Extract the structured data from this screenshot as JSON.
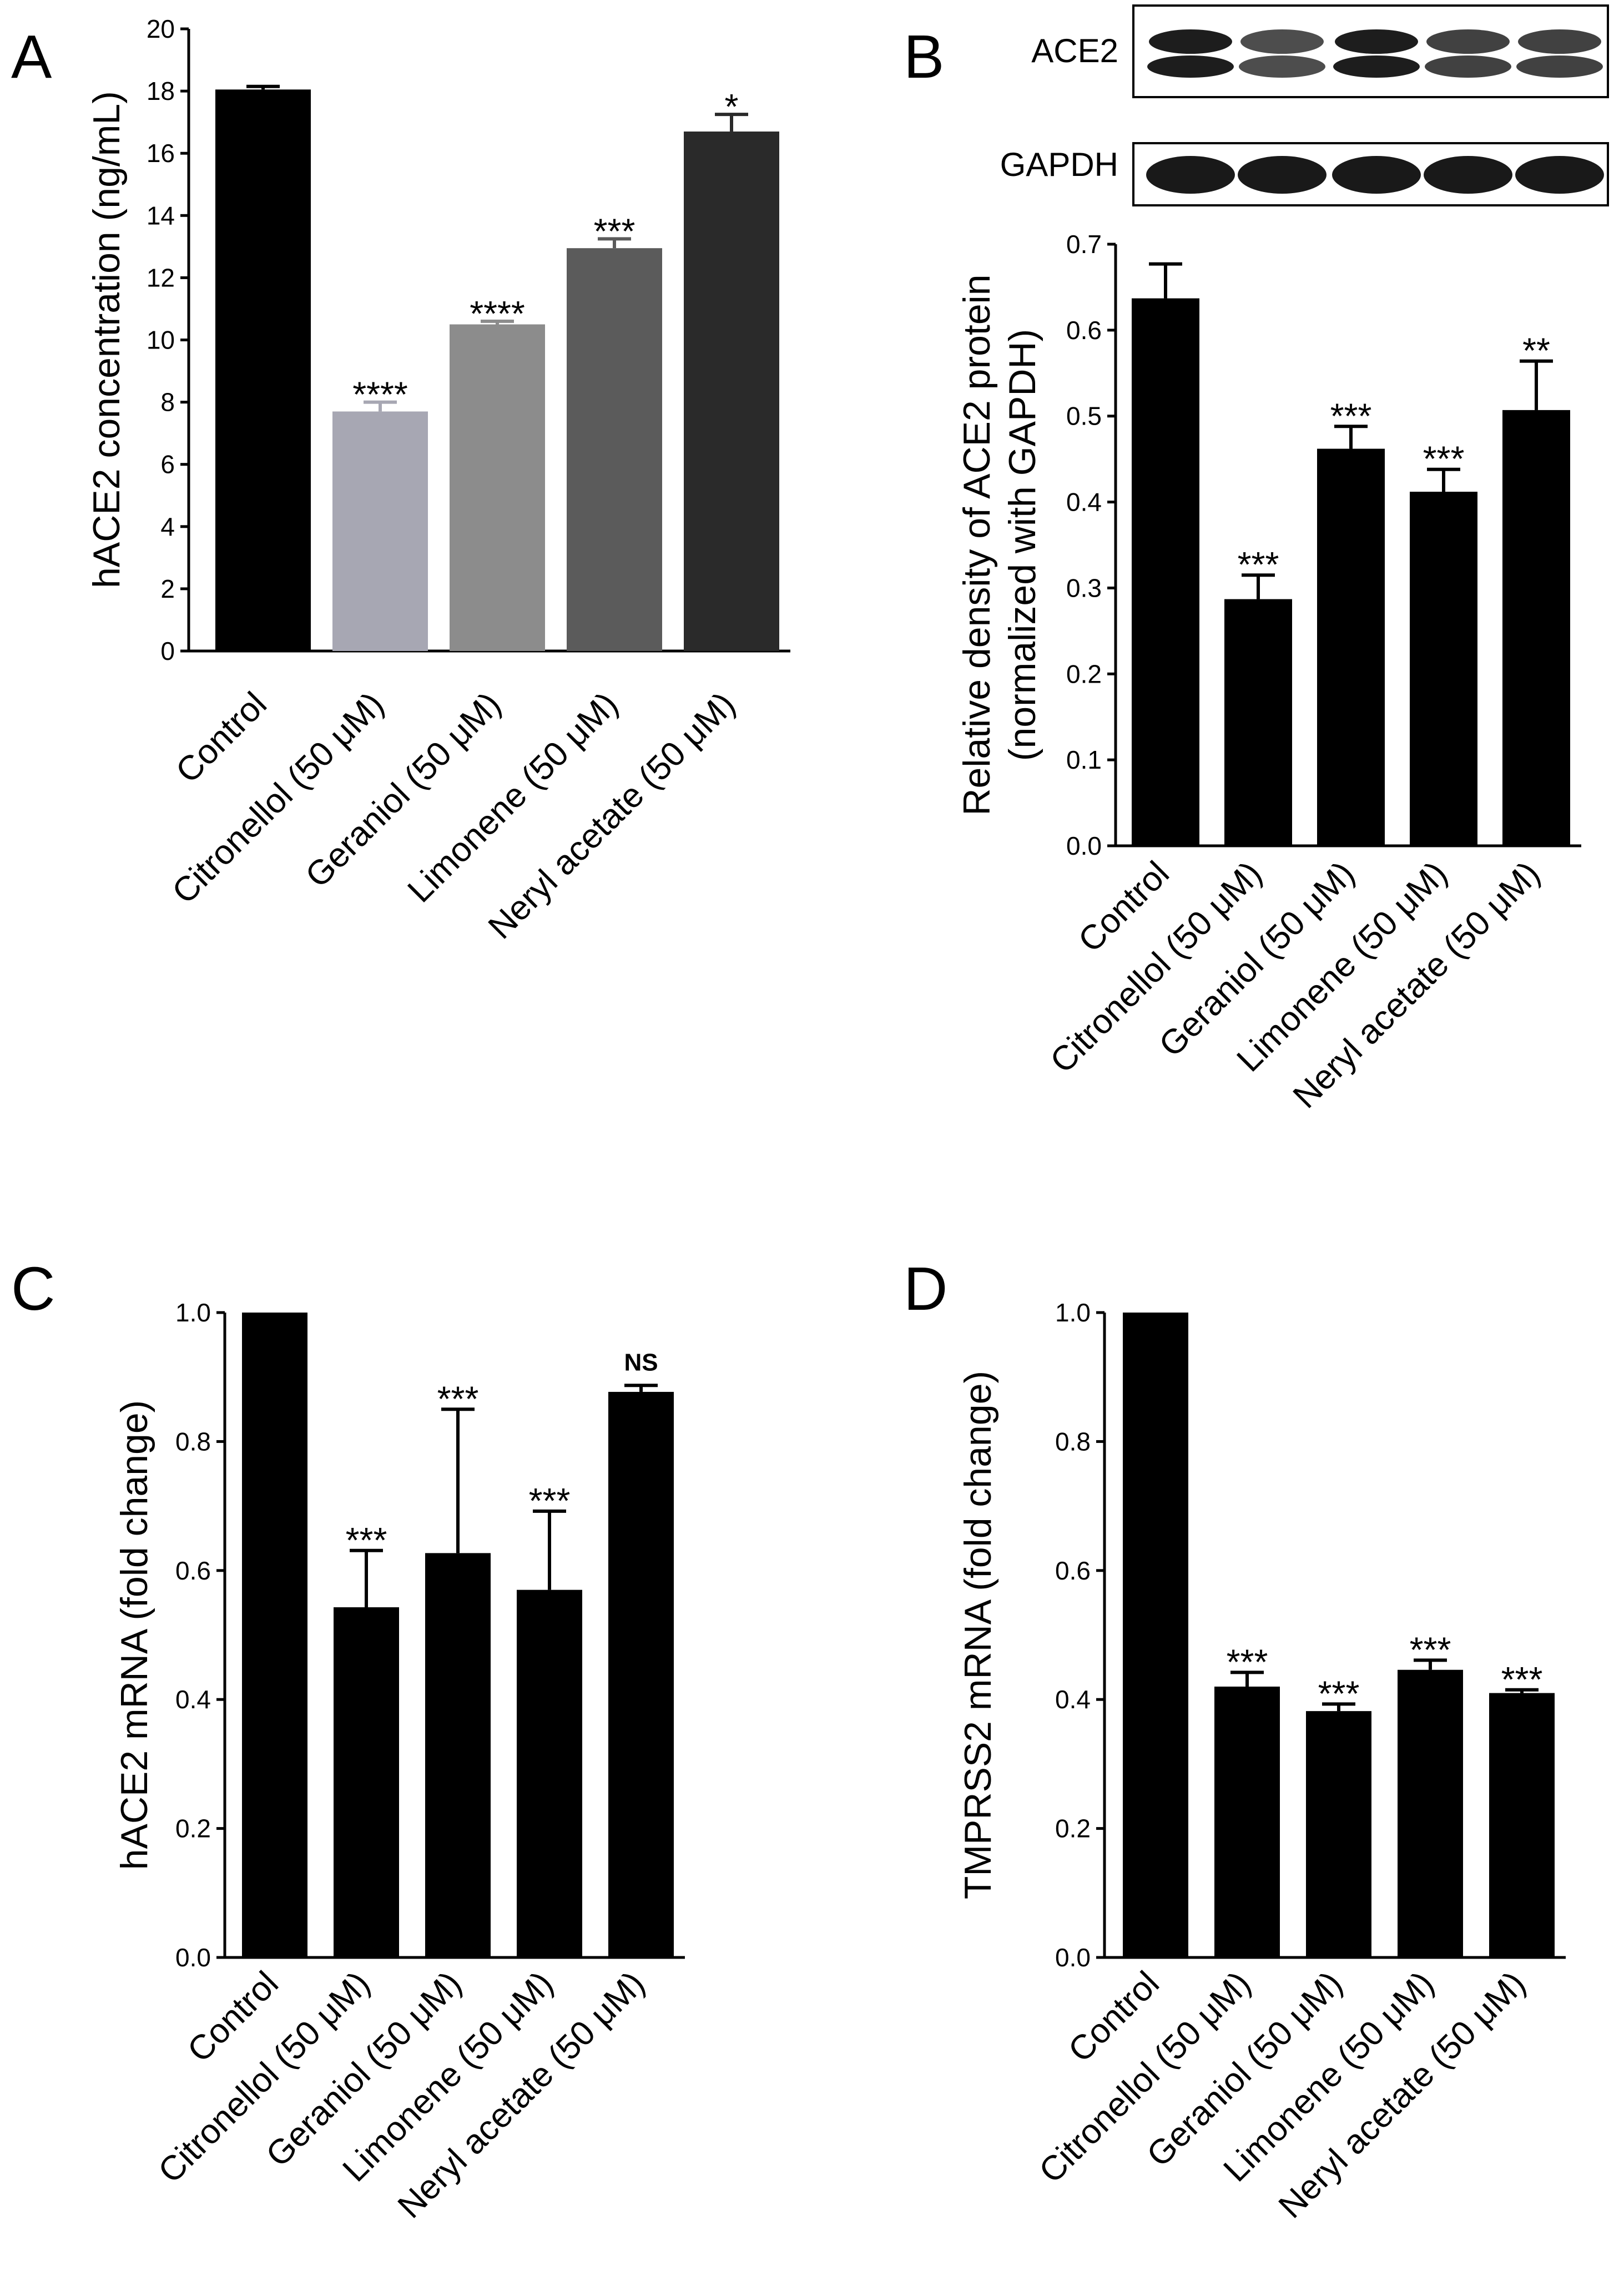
{
  "chart_data": [
    {
      "id": "A",
      "panel_label": "A",
      "type": "bar",
      "ylabel": "hACE2 concentration (ng/mL)",
      "ylim": [
        0,
        20
      ],
      "yticks": [
        "0",
        "2",
        "4",
        "6",
        "8",
        "10",
        "12",
        "14",
        "16",
        "18",
        "20"
      ],
      "categories": [
        "Control",
        "Citronellol (50 μM)",
        "Geraniol (50 μM)",
        "Limonene (50 μM)",
        "Neryl acetate (50 μM)"
      ],
      "values": [
        18.05,
        7.7,
        10.5,
        12.95,
        16.7
      ],
      "errors": [
        0.1,
        0.3,
        0.1,
        0.3,
        0.55
      ],
      "colors": [
        "#000000",
        "#a7a7b3",
        "#8c8c8c",
        "#5b5b5b",
        "#2a2a2a"
      ],
      "significance": [
        "",
        "****",
        "****",
        "***",
        "*"
      ]
    },
    {
      "id": "B",
      "panel_label": "B",
      "type": "bar",
      "ylabel_lines": [
        "Relative density of ACE2 protein",
        "(normalized with GAPDH)"
      ],
      "ylim": [
        0,
        0.7
      ],
      "yticks": [
        "0.0",
        "0.1",
        "0.2",
        "0.3",
        "0.4",
        "0.5",
        "0.6",
        "0.7"
      ],
      "categories": [
        "Control",
        "Citronellol (50 μM)",
        "Geraniol (50 μM)",
        "Limonene (50 μM)",
        "Neryl acetate (50 μM)"
      ],
      "values": [
        0.637,
        0.287,
        0.462,
        0.412,
        0.507
      ],
      "errors": [
        0.04,
        0.028,
        0.026,
        0.026,
        0.057
      ],
      "colors": [
        "#000000",
        "#000000",
        "#000000",
        "#000000",
        "#000000"
      ],
      "significance": [
        "",
        "***",
        "***",
        "***",
        "**"
      ],
      "blot_labels": [
        "ACE2",
        "GAPDH"
      ]
    },
    {
      "id": "C",
      "panel_label": "C",
      "type": "bar",
      "ylabel": "hACE2 mRNA (fold change)",
      "ylim": [
        0,
        1.0
      ],
      "yticks": [
        "0.0",
        "0.2",
        "0.4",
        "0.6",
        "0.8",
        "1.0"
      ],
      "categories": [
        "Control",
        "Citronellol (50 μM)",
        "Geraniol (50 μM)",
        "Limonene (50 μM)",
        "Neryl acetate (50 μM)"
      ],
      "values": [
        1.0,
        0.543,
        0.627,
        0.57,
        0.877
      ],
      "errors": [
        0,
        0.088,
        0.223,
        0.122,
        0.01
      ],
      "colors": [
        "#000000",
        "#000000",
        "#000000",
        "#000000",
        "#000000"
      ],
      "significance": [
        "",
        "***",
        "***",
        "***",
        "NS"
      ]
    },
    {
      "id": "D",
      "panel_label": "D",
      "type": "bar",
      "ylabel": "TMPRSS2 mRNA (fold change)",
      "ylim": [
        0,
        1.0
      ],
      "yticks": [
        "0.0",
        "0.2",
        "0.4",
        "0.6",
        "0.8",
        "1.0"
      ],
      "categories": [
        "Control",
        "Citronellol (50 μM)",
        "Geraniol (50 μM)",
        "Limonene (50 μM)",
        "Neryl acetate (50 μM)"
      ],
      "values": [
        1.0,
        0.42,
        0.382,
        0.446,
        0.41
      ],
      "errors": [
        0,
        0.022,
        0.011,
        0.015,
        0.005
      ],
      "colors": [
        "#000000",
        "#000000",
        "#000000",
        "#000000",
        "#000000"
      ],
      "significance": [
        "",
        "***",
        "***",
        "***",
        "***"
      ]
    }
  ]
}
